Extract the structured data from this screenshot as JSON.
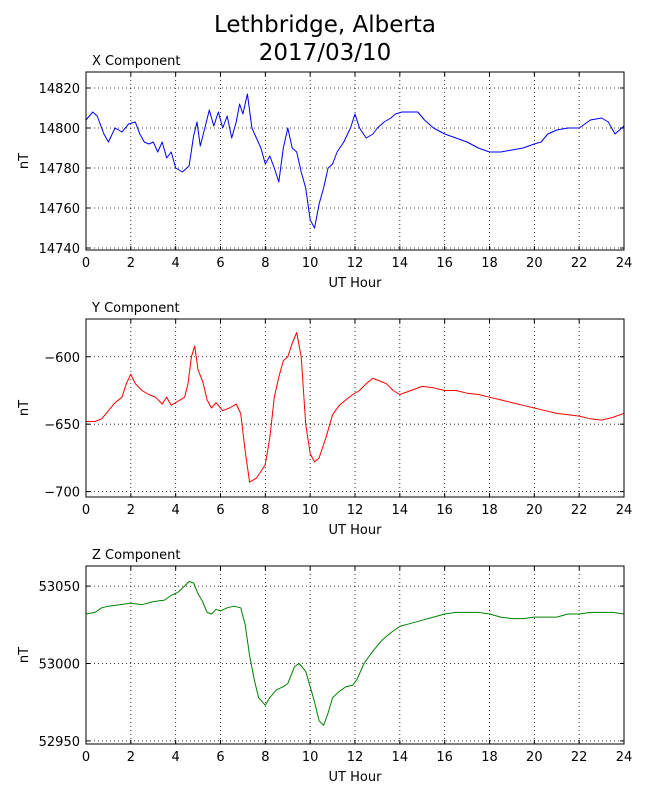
{
  "page": {
    "title_line1": "Lethbridge, Alberta",
    "title_line2": "2017/03/10"
  },
  "colors": {
    "x": "#0000ff",
    "y": "#ff0000",
    "z": "#008000"
  },
  "chart_data": [
    {
      "type": "line",
      "title": "X Component",
      "xlabel": "UT Hour",
      "ylabel": "nT",
      "xlim": [
        0,
        24
      ],
      "ylim": [
        14739,
        14828
      ],
      "xticks": [
        "0",
        "2",
        "4",
        "6",
        "8",
        "10",
        "12",
        "14",
        "16",
        "18",
        "20",
        "22",
        "24"
      ],
      "yticks": [
        "14740",
        "14760",
        "14780",
        "14800",
        "14820"
      ],
      "grid": true,
      "series": [
        {
          "color": "#0000ff",
          "points": [
            [
              0,
              14804
            ],
            [
              0.3,
              14808
            ],
            [
              0.5,
              14806
            ],
            [
              0.8,
              14797
            ],
            [
              1,
              14793
            ],
            [
              1.3,
              14800
            ],
            [
              1.6,
              14798
            ],
            [
              1.9,
              14802
            ],
            [
              2.2,
              14803
            ],
            [
              2.4,
              14797
            ],
            [
              2.6,
              14793
            ],
            [
              2.8,
              14792
            ],
            [
              3,
              14793
            ],
            [
              3.2,
              14788
            ],
            [
              3.4,
              14793
            ],
            [
              3.6,
              14785
            ],
            [
              3.8,
              14788
            ],
            [
              4,
              14780
            ],
            [
              4.3,
              14778
            ],
            [
              4.6,
              14781
            ],
            [
              4.8,
              14796
            ],
            [
              4.95,
              14803
            ],
            [
              5.1,
              14791
            ],
            [
              5.3,
              14800
            ],
            [
              5.5,
              14809
            ],
            [
              5.7,
              14801
            ],
            [
              5.9,
              14808
            ],
            [
              6.1,
              14800
            ],
            [
              6.3,
              14806
            ],
            [
              6.5,
              14795
            ],
            [
              6.7,
              14803
            ],
            [
              6.85,
              14812
            ],
            [
              7,
              14807
            ],
            [
              7.2,
              14817
            ],
            [
              7.4,
              14800
            ],
            [
              7.6,
              14795
            ],
            [
              7.8,
              14790
            ],
            [
              8,
              14782
            ],
            [
              8.2,
              14786
            ],
            [
              8.4,
              14780
            ],
            [
              8.6,
              14773
            ],
            [
              8.8,
              14790
            ],
            [
              9.0,
              14800
            ],
            [
              9.2,
              14790
            ],
            [
              9.4,
              14788
            ],
            [
              9.6,
              14778
            ],
            [
              9.8,
              14770
            ],
            [
              10,
              14754
            ],
            [
              10.2,
              14750
            ],
            [
              10.4,
              14762
            ],
            [
              10.6,
              14770
            ],
            [
              10.8,
              14780
            ],
            [
              11,
              14782
            ],
            [
              11.2,
              14788
            ],
            [
              11.5,
              14793
            ],
            [
              11.8,
              14800
            ],
            [
              12,
              14807
            ],
            [
              12.2,
              14800
            ],
            [
              12.5,
              14795
            ],
            [
              12.8,
              14797
            ],
            [
              13,
              14800
            ],
            [
              13.3,
              14803
            ],
            [
              13.6,
              14805
            ],
            [
              13.8,
              14807
            ],
            [
              14.1,
              14808
            ],
            [
              14.5,
              14808
            ],
            [
              14.8,
              14808
            ],
            [
              15.1,
              14804
            ],
            [
              15.5,
              14800
            ],
            [
              16,
              14797
            ],
            [
              16.5,
              14795
            ],
            [
              17,
              14793
            ],
            [
              17.5,
              14790
            ],
            [
              18,
              14788
            ],
            [
              18.5,
              14788
            ],
            [
              19,
              14789
            ],
            [
              19.5,
              14790
            ],
            [
              20,
              14792
            ],
            [
              20.3,
              14793
            ],
            [
              20.6,
              14797
            ],
            [
              21,
              14799
            ],
            [
              21.5,
              14800
            ],
            [
              22,
              14800
            ],
            [
              22.5,
              14804
            ],
            [
              23,
              14805
            ],
            [
              23.3,
              14803
            ],
            [
              23.6,
              14797
            ],
            [
              24,
              14801
            ]
          ]
        }
      ]
    },
    {
      "type": "line",
      "title": "Y Component",
      "xlabel": "UT Hour",
      "ylabel": "nT",
      "xlim": [
        0,
        24
      ],
      "ylim": [
        -704,
        -572
      ],
      "xticks": [
        "0",
        "2",
        "4",
        "6",
        "8",
        "10",
        "12",
        "14",
        "16",
        "18",
        "20",
        "22",
        "24"
      ],
      "yticks": [
        "−600",
        "−650",
        "−700"
      ],
      "grid": true,
      "series": [
        {
          "color": "#ff0000",
          "points": [
            [
              0,
              -648
            ],
            [
              0.4,
              -648
            ],
            [
              0.7,
              -646
            ],
            [
              1,
              -640
            ],
            [
              1.3,
              -634
            ],
            [
              1.6,
              -630
            ],
            [
              1.8,
              -620
            ],
            [
              2,
              -613
            ],
            [
              2.2,
              -620
            ],
            [
              2.5,
              -625
            ],
            [
              2.8,
              -628
            ],
            [
              3.1,
              -630
            ],
            [
              3.4,
              -635
            ],
            [
              3.6,
              -630
            ],
            [
              3.8,
              -636
            ],
            [
              4,
              -634
            ],
            [
              4.2,
              -632
            ],
            [
              4.4,
              -630
            ],
            [
              4.55,
              -620
            ],
            [
              4.7,
              -600
            ],
            [
              4.85,
              -592
            ],
            [
              5,
              -610
            ],
            [
              5.2,
              -618
            ],
            [
              5.4,
              -632
            ],
            [
              5.6,
              -638
            ],
            [
              5.8,
              -634
            ],
            [
              6.1,
              -640
            ],
            [
              6.4,
              -638
            ],
            [
              6.7,
              -635
            ],
            [
              6.9,
              -642
            ],
            [
              7.1,
              -670
            ],
            [
              7.3,
              -693
            ],
            [
              7.6,
              -690
            ],
            [
              7.8,
              -685
            ],
            [
              8,
              -680
            ],
            [
              8.2,
              -660
            ],
            [
              8.4,
              -630
            ],
            [
              8.6,
              -615
            ],
            [
              8.8,
              -603
            ],
            [
              9.0,
              -600
            ],
            [
              9.2,
              -590
            ],
            [
              9.4,
              -582
            ],
            [
              9.6,
              -600
            ],
            [
              9.8,
              -650
            ],
            [
              10,
              -672
            ],
            [
              10.2,
              -678
            ],
            [
              10.4,
              -675
            ],
            [
              10.7,
              -660
            ],
            [
              11,
              -643
            ],
            [
              11.3,
              -636
            ],
            [
              11.6,
              -632
            ],
            [
              11.9,
              -628
            ],
            [
              12.2,
              -625
            ],
            [
              12.5,
              -620
            ],
            [
              12.8,
              -616
            ],
            [
              13.1,
              -618
            ],
            [
              13.4,
              -620
            ],
            [
              13.7,
              -625
            ],
            [
              14,
              -628
            ],
            [
              14.5,
              -625
            ],
            [
              15,
              -622
            ],
            [
              15.5,
              -623
            ],
            [
              16,
              -625
            ],
            [
              16.5,
              -625
            ],
            [
              17,
              -627
            ],
            [
              17.5,
              -628
            ],
            [
              18,
              -630
            ],
            [
              18.5,
              -632
            ],
            [
              19,
              -634
            ],
            [
              19.5,
              -636
            ],
            [
              20,
              -638
            ],
            [
              20.5,
              -640
            ],
            [
              21,
              -642
            ],
            [
              21.5,
              -643
            ],
            [
              22,
              -644
            ],
            [
              22.5,
              -646
            ],
            [
              23,
              -647
            ],
            [
              23.5,
              -645
            ],
            [
              24,
              -642
            ]
          ]
        }
      ]
    },
    {
      "type": "line",
      "title": "Z Component",
      "xlabel": "UT Hour",
      "ylabel": "nT",
      "xlim": [
        0,
        24
      ],
      "ylim": [
        52948,
        53063
      ],
      "xticks": [
        "0",
        "2",
        "4",
        "6",
        "8",
        "10",
        "12",
        "14",
        "16",
        "18",
        "20",
        "22",
        "24"
      ],
      "yticks": [
        "53050",
        "53000",
        "52950"
      ],
      "grid": true,
      "series": [
        {
          "color": "#008000",
          "points": [
            [
              0,
              53032
            ],
            [
              0.4,
              53033
            ],
            [
              0.7,
              53036
            ],
            [
              1,
              53037
            ],
            [
              1.5,
              53038
            ],
            [
              2,
              53039
            ],
            [
              2.5,
              53038
            ],
            [
              3,
              53040
            ],
            [
              3.5,
              53041
            ],
            [
              3.8,
              53044
            ],
            [
              4.1,
              53046
            ],
            [
              4.4,
              53050
            ],
            [
              4.6,
              53053
            ],
            [
              4.8,
              53052
            ],
            [
              5,
              53045
            ],
            [
              5.2,
              53040
            ],
            [
              5.4,
              53033
            ],
            [
              5.6,
              53032
            ],
            [
              5.8,
              53035
            ],
            [
              6,
              53034
            ],
            [
              6.3,
              53036
            ],
            [
              6.6,
              53037
            ],
            [
              6.9,
              53036
            ],
            [
              7.1,
              53025
            ],
            [
              7.3,
              53005
            ],
            [
              7.5,
              52990
            ],
            [
              7.7,
              52978
            ],
            [
              8,
              52973
            ],
            [
              8.2,
              52978
            ],
            [
              8.5,
              52983
            ],
            [
              8.8,
              52985
            ],
            [
              9,
              52987
            ],
            [
              9.3,
              52998
            ],
            [
              9.5,
              53000
            ],
            [
              9.8,
              52995
            ],
            [
              10,
              52985
            ],
            [
              10.2,
              52975
            ],
            [
              10.4,
              52963
            ],
            [
              10.6,
              52960
            ],
            [
              10.8,
              52968
            ],
            [
              11,
              52978
            ],
            [
              11.3,
              52982
            ],
            [
              11.6,
              52985
            ],
            [
              11.9,
              52986
            ],
            [
              12.1,
              52990
            ],
            [
              12.4,
              53000
            ],
            [
              12.8,
              53008
            ],
            [
              13.2,
              53015
            ],
            [
              13.6,
              53020
            ],
            [
              14,
              53024
            ],
            [
              14.5,
              53026
            ],
            [
              15,
              53028
            ],
            [
              15.5,
              53030
            ],
            [
              16,
              53032
            ],
            [
              16.5,
              53033
            ],
            [
              17,
              53033
            ],
            [
              17.5,
              53033
            ],
            [
              18,
              53032
            ],
            [
              18.5,
              53030
            ],
            [
              19,
              53029
            ],
            [
              19.5,
              53029
            ],
            [
              20,
              53030
            ],
            [
              20.5,
              53030
            ],
            [
              21,
              53030
            ],
            [
              21.5,
              53032
            ],
            [
              22,
              53032
            ],
            [
              22.5,
              53033
            ],
            [
              23,
              53033
            ],
            [
              23.5,
              53033
            ],
            [
              24,
              53032
            ]
          ]
        }
      ]
    }
  ]
}
